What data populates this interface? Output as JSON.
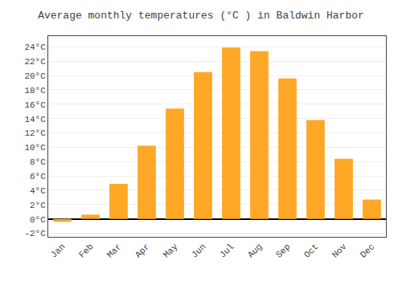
{
  "chart_data": {
    "type": "bar",
    "title": "Average monthly temperatures (°C ) in Baldwin Harbor",
    "categories": [
      "Jan",
      "Feb",
      "Mar",
      "Apr",
      "May",
      "Jun",
      "Jul",
      "Aug",
      "Sep",
      "Oct",
      "Nov",
      "Dec"
    ],
    "values": [
      -0.4,
      0.6,
      4.9,
      10.2,
      15.4,
      20.5,
      23.9,
      23.4,
      19.6,
      13.8,
      8.4,
      2.7
    ],
    "color": "#FFA726",
    "ylim": [
      -2.5,
      25.5
    ],
    "yticks": [
      {
        "value": -2,
        "label": "-2°C"
      },
      {
        "value": 0,
        "label": "0°C"
      },
      {
        "value": 2,
        "label": "2°C"
      },
      {
        "value": 4,
        "label": "4°C"
      },
      {
        "value": 6,
        "label": "6°C"
      },
      {
        "value": 8,
        "label": "8°C"
      },
      {
        "value": 10,
        "label": "10°C"
      },
      {
        "value": 12,
        "label": "12°C"
      },
      {
        "value": 14,
        "label": "14°C"
      },
      {
        "value": 16,
        "label": "16°C"
      },
      {
        "value": 18,
        "label": "18°C"
      },
      {
        "value": 20,
        "label": "20°C"
      },
      {
        "value": 22,
        "label": "22°C"
      },
      {
        "value": 24,
        "label": "24°C"
      }
    ],
    "grid": true
  }
}
